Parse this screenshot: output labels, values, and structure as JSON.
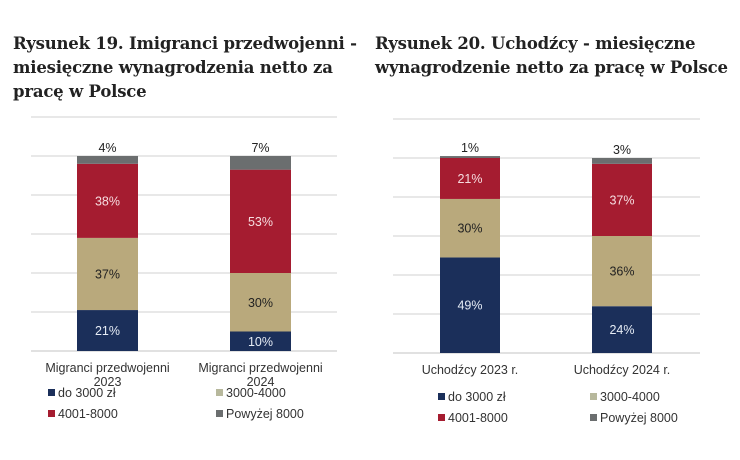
{
  "chart_data": [
    {
      "type": "bar",
      "stacked": true,
      "title": "Rysunek 19. Imigranci przedwojenni - miesięczne wynagrodzenia netto za pracę w Polsce",
      "categories": [
        [
          "Migranci przedwojenni",
          "2023"
        ],
        [
          "Migranci przedwojenni",
          "2024"
        ]
      ],
      "series": [
        {
          "name": "do 3000 zł",
          "color": "#1b2f5a",
          "values": [
            21,
            10
          ],
          "label_color": "#e6ecf5"
        },
        {
          "name": "3000-4000",
          "color": "#b9a97c",
          "values": [
            37,
            30
          ],
          "label_color": "#222222"
        },
        {
          "name": "4001-8000",
          "color": "#a51c30",
          "values": [
            38,
            53
          ],
          "label_color": "#f6dde0"
        },
        {
          "name": "Powyżej 8000",
          "color": "#6b6e6f",
          "values": [
            4,
            7
          ],
          "label_color": "#222222"
        }
      ],
      "unit": "%",
      "ylim": [
        0,
        120
      ],
      "grid": true,
      "legend": "bottom"
    },
    {
      "type": "bar",
      "stacked": true,
      "title": "Rysunek 20. Uchodźcy - miesięczne wynagrodzenie netto za pracę w Polsce",
      "categories": [
        [
          "Uchodźcy 2023 r."
        ],
        [
          "Uchodźcy 2024 r."
        ]
      ],
      "series": [
        {
          "name": "do 3000 zł",
          "color": "#1b2f5a",
          "values": [
            49,
            24
          ],
          "label_color": "#e6ecf5"
        },
        {
          "name": "3000-4000",
          "color": "#b9a97c",
          "values": [
            30,
            36
          ],
          "label_color": "#222222"
        },
        {
          "name": "4001-8000",
          "color": "#a51c30",
          "values": [
            21,
            37
          ],
          "label_color": "#f6dde0"
        },
        {
          "name": "Powyżej 8000",
          "color": "#6b6e6f",
          "values": [
            1,
            3
          ],
          "label_color": "#222222"
        }
      ],
      "unit": "%",
      "ylim": [
        0,
        120
      ],
      "grid": true,
      "legend": "bottom"
    }
  ],
  "titles": {
    "left": "Rysunek 19. Imigranci przedwojenni - miesięczne wynagrodzenia netto za pracę w Polsce",
    "right": "Rysunek 20. Uchodźcy - miesięczne wynagrodzenie netto za pracę w Polsce"
  }
}
